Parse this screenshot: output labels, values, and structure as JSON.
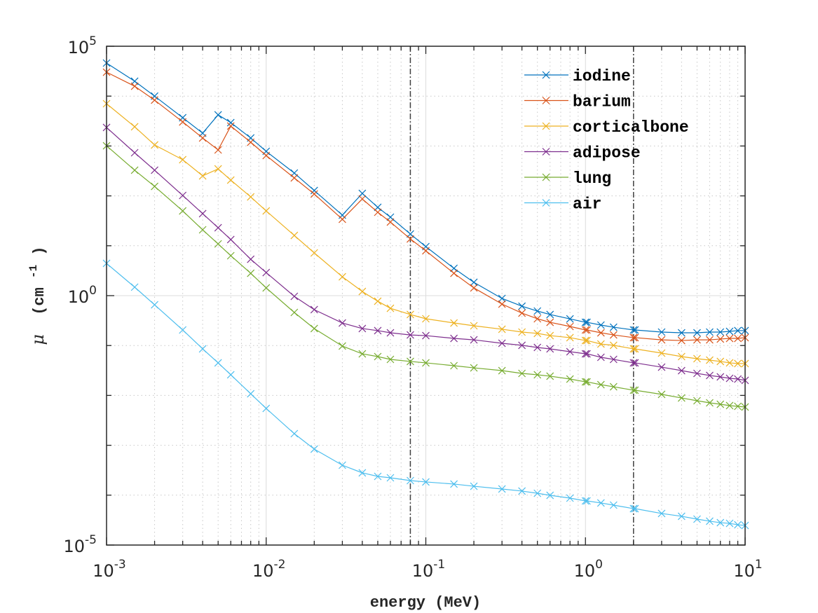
{
  "chart_data": {
    "type": "line",
    "title": "",
    "xlabel": "energy (MeV)",
    "ylabel_symbol": "μ",
    "ylabel_units": "(cm",
    "ylabel_units_exp": "-1",
    "ylabel_units_close": ")",
    "xscale": "log",
    "yscale": "log",
    "xlim": [
      0.001,
      10
    ],
    "ylim": [
      1e-05,
      100000
    ],
    "grid": "major and minor (dotted minor)",
    "legend_position": "top-right",
    "x_ticks": [
      {
        "base": "10",
        "exp": "-3",
        "value": 0.001
      },
      {
        "base": "10",
        "exp": "-2",
        "value": 0.01
      },
      {
        "base": "10",
        "exp": "-1",
        "value": 0.1
      },
      {
        "base": "10",
        "exp": "0",
        "value": 1
      },
      {
        "base": "10",
        "exp": "1",
        "value": 10
      }
    ],
    "y_ticks": [
      {
        "base": "10",
        "exp": "-5",
        "value": 1e-05
      },
      {
        "base": "10",
        "exp": "0",
        "value": 1
      },
      {
        "base": "10",
        "exp": "5",
        "value": 100000
      }
    ],
    "vertical_reference_lines": [
      0.08,
      2.0
    ],
    "x": [
      0.001,
      0.0015,
      0.002,
      0.003,
      0.004,
      0.005,
      0.006,
      0.008,
      0.01,
      0.015,
      0.02,
      0.03,
      0.04,
      0.05,
      0.06,
      0.08,
      0.1,
      0.15,
      0.2,
      0.3,
      0.4,
      0.5,
      0.6,
      0.8,
      1.0,
      1.022,
      1.25,
      1.5,
      2.0,
      2.044,
      3,
      4,
      5,
      6,
      7,
      8,
      9,
      10
    ],
    "series": [
      {
        "name": "iodine",
        "color": "#0072BD",
        "values": [
          46000,
          19900,
          10000,
          3690,
          1810,
          4210,
          2940,
          1450,
          782,
          287,
          128,
          41.2,
          112,
          58.9,
          37.4,
          17.2,
          9.62,
          3.53,
          1.85,
          0.879,
          0.615,
          0.491,
          0.418,
          0.342,
          0.292,
          0.292,
          0.257,
          0.233,
          0.205,
          0.205,
          0.186,
          0.18,
          0.18,
          0.186,
          0.186,
          0.192,
          0.199,
          0.199
        ]
      },
      {
        "name": "barium",
        "color": "#D95319",
        "values": [
          30200,
          15800,
          8300,
          3040,
          1450,
          834,
          2510,
          1190,
          644,
          229,
          109,
          34.0,
          86.7,
          46.9,
          29.9,
          13.7,
          7.93,
          2.81,
          1.43,
          0.678,
          0.446,
          0.344,
          0.292,
          0.241,
          0.205,
          0.205,
          0.18,
          0.163,
          0.144,
          0.144,
          0.13,
          0.126,
          0.13,
          0.13,
          0.135,
          0.139,
          0.139,
          0.144
        ]
      },
      {
        "name": "corticalbone",
        "color": "#EDB120",
        "values": [
          7050,
          2430,
          1050,
          531,
          252,
          348,
          207,
          95.5,
          50.0,
          16.1,
          7.19,
          2.39,
          1.21,
          0.773,
          0.558,
          0.418,
          0.344,
          0.283,
          0.249,
          0.212,
          0.186,
          0.175,
          0.158,
          0.144,
          0.126,
          0.126,
          0.107,
          0.101,
          0.0857,
          0.0857,
          0.0705,
          0.06,
          0.0545,
          0.051,
          0.0479,
          0.0449,
          0.0435,
          0.0435
        ]
      },
      {
        "name": "adipose",
        "color": "#7E2F8E",
        "values": [
          2350,
          733,
          327,
          102,
          44.0,
          23.0,
          13.3,
          5.37,
          2.9,
          0.968,
          0.524,
          0.283,
          0.219,
          0.199,
          0.18,
          0.163,
          0.158,
          0.139,
          0.13,
          0.111,
          0.101,
          0.0914,
          0.0857,
          0.0752,
          0.0682,
          0.0682,
          0.0581,
          0.0527,
          0.0449,
          0.0449,
          0.0369,
          0.0314,
          0.0276,
          0.0251,
          0.0235,
          0.022,
          0.0213,
          0.02
        ]
      },
      {
        "name": "lung",
        "color": "#77AC30",
        "values": [
          1010,
          327,
          155,
          50.0,
          20.9,
          10.9,
          6.32,
          2.81,
          1.43,
          0.46,
          0.219,
          0.0975,
          0.0682,
          0.06,
          0.0527,
          0.0479,
          0.0449,
          0.0394,
          0.0357,
          0.0314,
          0.0276,
          0.0259,
          0.0243,
          0.0213,
          0.0187,
          0.0187,
          0.0164,
          0.0149,
          0.0127,
          0.0127,
          0.0105,
          0.00889,
          0.00782,
          0.0071,
          0.00665,
          0.00624,
          0.00604,
          0.00585
        ]
      },
      {
        "name": "air",
        "color": "#4DBEEE",
        "values": [
          4.43,
          1.48,
          0.656,
          0.205,
          0.0857,
          0.0449,
          0.0259,
          0.0108,
          0.00548,
          0.00171,
          0.000839,
          0.000399,
          0.00028,
          0.000238,
          0.000223,
          0.000196,
          0.000184,
          0.000167,
          0.000151,
          0.000133,
          0.000121,
          0.000109,
          9.93e-05,
          8.73e-05,
          7.67e-05,
          7.67e-05,
          6.97e-05,
          6.32e-05,
          5.37e-05,
          5.37e-05,
          4.29e-05,
          3.77e-05,
          3.31e-05,
          3.01e-05,
          2.81e-05,
          2.72e-05,
          2.55e-05,
          2.47e-05
        ]
      }
    ]
  }
}
